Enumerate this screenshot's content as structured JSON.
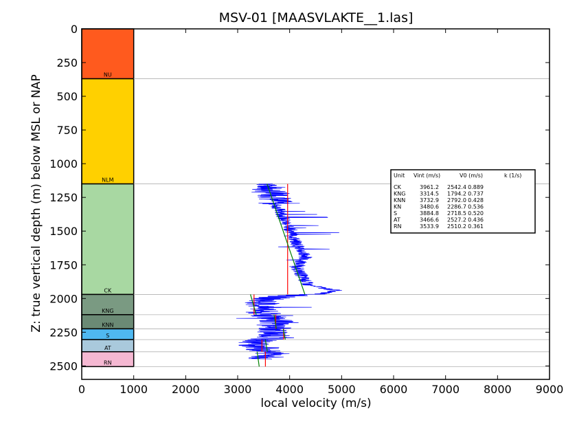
{
  "chart_data": {
    "type": "line",
    "title": "MSV-01 [MAASVLAKTE__1.las]",
    "xlabel": "local velocity (m/s)",
    "ylabel": "Z: true vertical depth (m) below MSL or NAP",
    "xlim": [
      0,
      9000
    ],
    "ylim": [
      2600,
      0
    ],
    "x_ticks": [
      "0",
      "1000",
      "2000",
      "3000",
      "4000",
      "5000",
      "6000",
      "7000",
      "8000",
      "9000"
    ],
    "y_ticks": [
      "0",
      "250",
      "500",
      "750",
      "1000",
      "1250",
      "1500",
      "1750",
      "2000",
      "2250",
      "2500"
    ],
    "y_reversed": true,
    "grid": false,
    "units": [
      {
        "name": "NU",
        "top": 0,
        "base": 370,
        "color": "#ff5a1e"
      },
      {
        "name": "NLM",
        "top": 370,
        "base": 1150,
        "color": "#ffd000"
      },
      {
        "name": "CK",
        "top": 1150,
        "base": 1970,
        "color": "#a8d8a2"
      },
      {
        "name": "KNG",
        "top": 1970,
        "base": 2120,
        "color": "#7a9a82"
      },
      {
        "name": "KNN",
        "top": 2120,
        "base": 2225,
        "color": "#6b8a75"
      },
      {
        "name": "S",
        "top": 2225,
        "base": 2305,
        "color": "#4fb8f0"
      },
      {
        "name": "AT",
        "top": 2305,
        "base": 2395,
        "color": "#a9c9dc"
      },
      {
        "name": "RN",
        "top": 2395,
        "base": 2505,
        "color": "#f5b8d2"
      }
    ],
    "boundaries": [
      370,
      1150,
      1970,
      2120,
      2225,
      2305,
      2395,
      2505
    ],
    "log_center": [
      [
        1150,
        3680
      ],
      [
        1180,
        3550
      ],
      [
        1210,
        3600
      ],
      [
        1240,
        3750
      ],
      [
        1270,
        3700
      ],
      [
        1300,
        3720
      ],
      [
        1330,
        3780
      ],
      [
        1360,
        3820
      ],
      [
        1390,
        3870
      ],
      [
        1420,
        3900
      ],
      [
        1450,
        3950
      ],
      [
        1480,
        4000
      ],
      [
        1510,
        4050
      ],
      [
        1540,
        4080
      ],
      [
        1570,
        4100
      ],
      [
        1600,
        4150
      ],
      [
        1630,
        4200
      ],
      [
        1660,
        4250
      ],
      [
        1690,
        4300
      ],
      [
        1720,
        4230
      ],
      [
        1750,
        4180
      ],
      [
        1780,
        4150
      ],
      [
        1810,
        4200
      ],
      [
        1840,
        4250
      ],
      [
        1870,
        4300
      ],
      [
        1900,
        4350
      ],
      [
        1920,
        4600
      ],
      [
        1940,
        4900
      ],
      [
        1965,
        4600
      ],
      [
        1985,
        3800
      ],
      [
        2010,
        3550
      ],
      [
        2040,
        3450
      ],
      [
        2070,
        3500
      ],
      [
        2100,
        3420
      ],
      [
        2130,
        3600
      ],
      [
        2160,
        3750
      ],
      [
        2190,
        3720
      ],
      [
        2220,
        3700
      ],
      [
        2240,
        3750
      ],
      [
        2260,
        3650
      ],
      [
        2280,
        3700
      ],
      [
        2300,
        3550
      ],
      [
        2320,
        3350
      ],
      [
        2340,
        3300
      ],
      [
        2360,
        3450
      ],
      [
        2390,
        3500
      ],
      [
        2410,
        3700
      ],
      [
        2430,
        3600
      ],
      [
        2450,
        3500
      ]
    ],
    "segments": [
      {
        "unit": "CK",
        "vint": 3961.2,
        "v0": 2542.4,
        "k": 0.889,
        "top": 1150,
        "base": 1970
      },
      {
        "unit": "KNG",
        "vint": 3314.5,
        "v0": 1794.2,
        "k": 0.737,
        "top": 1970,
        "base": 2120
      },
      {
        "unit": "KNN",
        "vint": 3732.9,
        "v0": 2792.0,
        "k": 0.428,
        "top": 2120,
        "base": 2225
      },
      {
        "unit": "S",
        "vint": 3884.8,
        "v0": 2718.5,
        "k": 0.52,
        "top": 2225,
        "base": 2305
      },
      {
        "unit": "AT",
        "vint": 3466.6,
        "v0": 2527.2,
        "k": 0.436,
        "top": 2305,
        "base": 2395
      },
      {
        "unit": "RN",
        "vint": 3533.9,
        "v0": 2510.2,
        "k": 0.361,
        "top": 2395,
        "base": 2505
      }
    ],
    "table": {
      "header": [
        "Unit",
        "Vint (m/s)",
        "V0 (m/s)",
        "k (1/s)"
      ],
      "rows": [
        [
          "CK",
          "3961.2",
          "2542.4",
          "0.889"
        ],
        [
          "KNG",
          "3314.5",
          "1794.2",
          "0.737"
        ],
        [
          "KNN",
          "3732.9",
          "2792.0",
          "0.428"
        ],
        [
          "KN",
          "3480.6",
          "2286.7",
          "0.536"
        ],
        [
          "S",
          "3884.8",
          "2718.5",
          "0.520"
        ],
        [
          "AT",
          "3466.6",
          "2527.2",
          "0.436"
        ],
        [
          "RN",
          "3533.9",
          "2510.2",
          "0.361"
        ]
      ]
    },
    "colors": {
      "log": "#0000ff",
      "vint": "#ff0000",
      "trend": "#008000",
      "boundary": "#b0b0b0"
    }
  }
}
